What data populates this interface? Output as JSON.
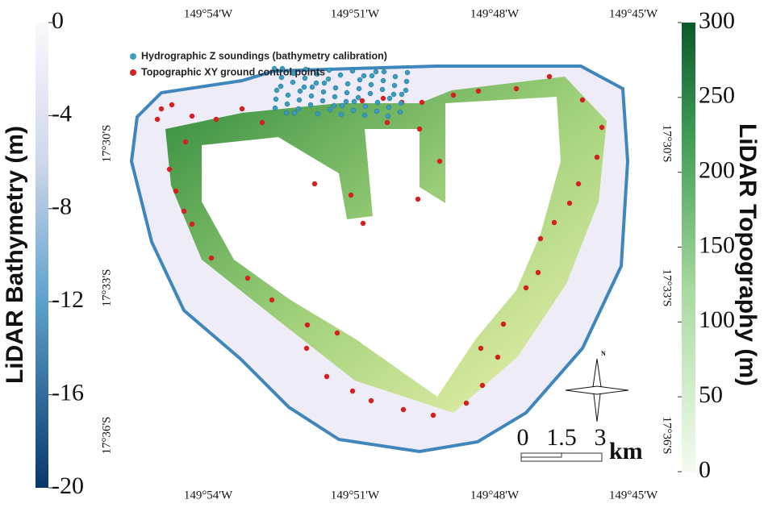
{
  "bathymetry_colorbar": {
    "title": "LiDAR Bathymetry (m)",
    "lim": [
      0,
      -20
    ],
    "ticks": [
      0,
      -4,
      -8,
      -12,
      -16,
      -20
    ]
  },
  "topography_colorbar": {
    "title": "LiDAR Topography (m)",
    "lim": [
      0,
      300
    ],
    "ticks": [
      300,
      250,
      200,
      150,
      100,
      50,
      0
    ]
  },
  "longitude_labels_top": [
    "149°54'W",
    "149°51'W",
    "149°48'W",
    "149°45'W"
  ],
  "longitude_labels_bottom": [
    "149°54'W",
    "149°51'W",
    "149°48'W",
    "149°45'W"
  ],
  "latitude_labels_left": [
    "17°30'S",
    "17°33'S",
    "17°36'S"
  ],
  "latitude_labels_right": [
    "17°30'S",
    "17°33'S",
    "17°36'S"
  ],
  "legend": [
    {
      "label": "Hydrographic Z soundings (bathymetry calibration)"
    },
    {
      "label": "Topographic XY ground control points"
    }
  ],
  "scale_bar": {
    "ticks": [
      "0",
      "1.5",
      "3"
    ],
    "unit": "km"
  },
  "north_label": "N"
}
